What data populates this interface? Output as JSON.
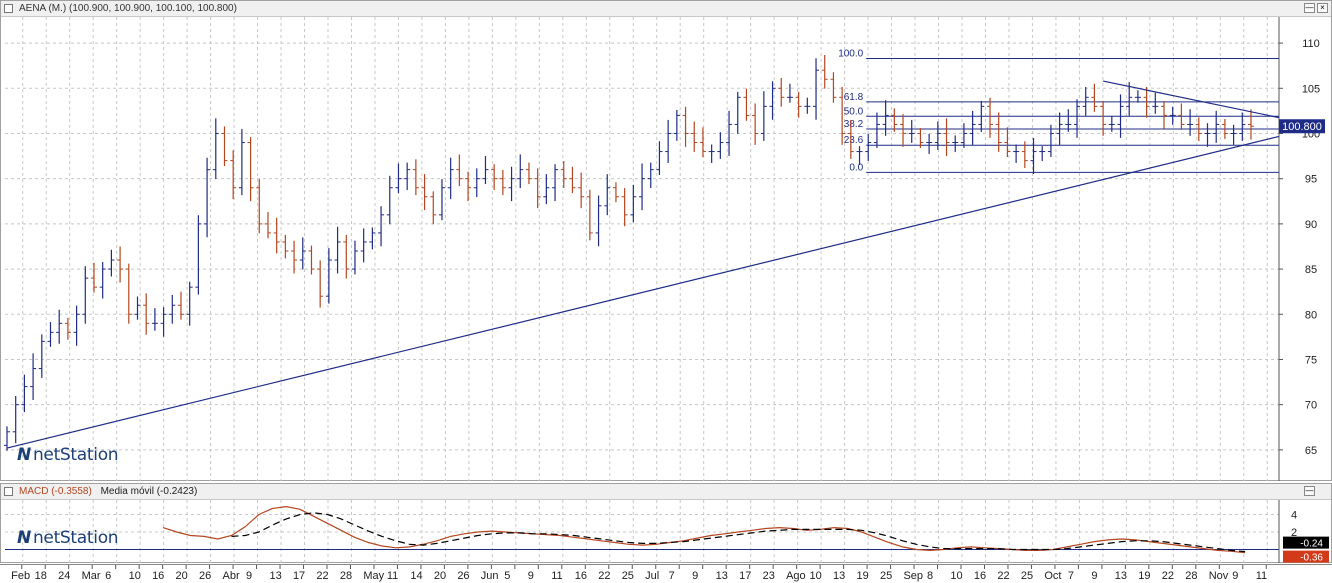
{
  "price_panel": {
    "title": "AENA (M.) (100.900, 100.900, 100.100, 100.800)",
    "last_price_label": "100.800",
    "logo_text": "netStation",
    "window_buttons": [
      "—",
      "×"
    ]
  },
  "macd_panel": {
    "macd_label": "MACD (-0.3558)",
    "ma_label": "Media móvil (-0.2423)",
    "macd_value_label": "-0.36",
    "ma_value_label": "-0.24",
    "logo_text": "netStation",
    "window_buttons": [
      "—"
    ]
  },
  "colors": {
    "up_bar": "#1f2c87",
    "down_bar": "#b5461f",
    "trendline": "#1f2c87",
    "fib": "#1f2c87",
    "macd_line": "#b5461f",
    "ma_line": "#000000",
    "grid": "#c8c8c8"
  },
  "chart_data": [
    {
      "type": "ohlc",
      "title": "AENA (M.) (100.900, 100.900, 100.100, 100.800)",
      "y_ticks": [
        65,
        70,
        75,
        80,
        85,
        90,
        95,
        100,
        105,
        110
      ],
      "ylim": [
        62,
        112
      ],
      "last_price": 100.8,
      "grid": true,
      "closes": [
        67,
        70,
        72,
        74,
        77,
        78,
        79,
        78,
        80,
        84,
        83,
        85,
        86,
        85,
        80,
        81,
        79,
        79,
        80,
        81,
        80,
        83,
        90,
        96,
        100,
        97,
        94,
        99,
        94,
        90,
        89,
        88,
        87,
        86,
        87,
        85,
        82,
        86,
        88,
        85,
        87,
        88,
        89,
        91,
        94,
        95,
        96,
        94,
        93,
        91,
        94,
        96,
        95,
        94,
        95,
        96,
        95,
        94,
        95,
        96,
        95,
        93,
        94,
        96,
        95,
        94,
        93,
        89,
        92,
        94,
        93,
        91,
        93,
        95,
        96,
        98,
        100,
        102,
        100,
        99,
        98,
        98,
        99,
        101,
        104,
        102,
        100,
        103,
        105,
        104,
        104,
        103,
        103,
        107,
        106,
        104,
        100,
        98,
        98,
        99,
        101,
        102,
        101,
        100,
        100,
        99,
        99,
        100,
        99,
        99,
        100,
        101,
        103,
        101,
        99,
        98,
        98,
        97,
        98,
        98,
        100,
        101,
        101,
        103,
        104,
        103,
        101,
        101,
        103,
        104,
        104,
        103,
        103,
        102,
        102,
        101,
        101,
        100,
        100,
        101,
        100,
        100,
        101,
        100.8
      ],
      "fibonacci": [
        {
          "label": "100.0",
          "value": 108.3
        },
        {
          "label": "61.8",
          "value": 103.5
        },
        {
          "label": "50.0",
          "value": 101.9
        },
        {
          "label": "38.2",
          "value": 100.5
        },
        {
          "label": "23.6",
          "value": 98.7
        },
        {
          "label": "0.0",
          "value": 95.7
        }
      ],
      "trendlines": [
        {
          "from": [
            0,
            65.2
          ],
          "to": [
            151,
            100.8
          ]
        },
        {
          "from": [
            126,
            105.8
          ],
          "to": [
            151,
            100.8
          ]
        }
      ]
    },
    {
      "type": "line",
      "title": "MACD (-0.3558)  Media móvil (-0.2423)",
      "y_ticks": [
        2,
        4
      ],
      "ylim": [
        -1.2,
        5.2
      ],
      "series": [
        {
          "name": "MACD (-0.3558)",
          "last": -0.3558,
          "values": [
            2.5,
            2.0,
            1.6,
            1.5,
            1.2,
            1.6,
            2.6,
            4.0,
            4.7,
            4.9,
            4.6,
            3.8,
            3.0,
            2.2,
            1.4,
            0.8,
            0.4,
            0.2,
            0.3,
            0.6,
            1.0,
            1.5,
            1.8,
            2.0,
            2.1,
            2.0,
            1.9,
            1.8,
            1.7,
            1.6,
            1.4,
            1.2,
            1.0,
            0.8,
            0.6,
            0.5,
            0.6,
            0.8,
            1.0,
            1.3,
            1.6,
            1.8,
            2.0,
            2.2,
            2.4,
            2.5,
            2.4,
            2.2,
            2.3,
            2.5,
            2.4,
            2.0,
            1.4,
            0.8,
            0.3,
            0.0,
            -0.1,
            0.0,
            0.2,
            0.3,
            0.2,
            0.1,
            0.0,
            -0.1,
            -0.1,
            0.0,
            0.3,
            0.6,
            0.9,
            1.1,
            1.2,
            1.1,
            0.9,
            0.7,
            0.5,
            0.3,
            0.1,
            -0.1,
            -0.2,
            -0.36
          ]
        },
        {
          "name": "Media móvil (-0.2423)",
          "last": -0.2423,
          "values": [
            null,
            null,
            null,
            null,
            null,
            1.5,
            1.6,
            2.0,
            2.8,
            3.5,
            4.0,
            4.2,
            4.0,
            3.5,
            2.8,
            2.1,
            1.5,
            1.0,
            0.6,
            0.5,
            0.7,
            1.0,
            1.3,
            1.6,
            1.8,
            1.9,
            1.9,
            1.8,
            1.8,
            1.7,
            1.6,
            1.4,
            1.2,
            1.0,
            0.8,
            0.7,
            0.7,
            0.8,
            0.9,
            1.1,
            1.3,
            1.5,
            1.7,
            1.9,
            2.1,
            2.2,
            2.3,
            2.3,
            2.3,
            2.3,
            2.3,
            2.2,
            1.9,
            1.5,
            1.0,
            0.6,
            0.3,
            0.1,
            0.1,
            0.1,
            0.1,
            0.1,
            0.0,
            0.0,
            0.0,
            0.0,
            0.1,
            0.3,
            0.5,
            0.7,
            0.9,
            1.0,
            1.0,
            0.9,
            0.7,
            0.5,
            0.3,
            0.1,
            -0.1,
            -0.24
          ]
        }
      ]
    }
  ],
  "x_axis": {
    "labels": [
      "Feb",
      "18",
      "24",
      "Mar",
      "6",
      "10",
      "16",
      "20",
      "26",
      "Abr",
      "9",
      "13",
      "17",
      "22",
      "28",
      "May",
      "11",
      "14",
      "20",
      "26",
      "Jun",
      "5",
      "9",
      "11",
      "16",
      "22",
      "25",
      "Jul",
      "7",
      "9",
      "13",
      "17",
      "23",
      "Ago",
      "10",
      "13",
      "19",
      "25",
      "Sep",
      "8",
      "10",
      "16",
      "22",
      "25",
      "Oct",
      "7",
      "9",
      "13",
      "19",
      "22",
      "28",
      "Nov",
      "9",
      "11"
    ]
  }
}
